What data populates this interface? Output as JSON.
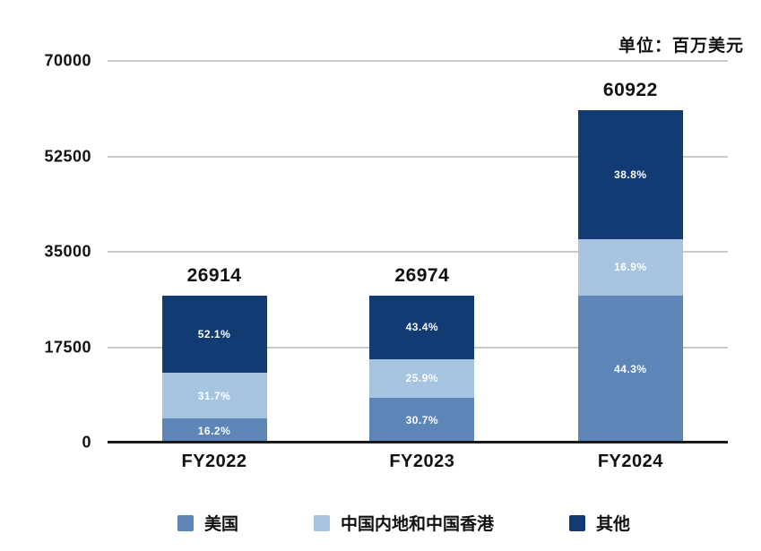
{
  "chart_data": {
    "type": "bar",
    "stacked": true,
    "title": "",
    "unit_label": "单位：百万美元",
    "categories": [
      "FY2022",
      "FY2023",
      "FY2024"
    ],
    "totals": [
      26914,
      26974,
      60922
    ],
    "total_labels": [
      "26914",
      "26974",
      "60922"
    ],
    "series": [
      {
        "name": "美国",
        "color": "#5d85b8",
        "percentages": [
          16.2,
          30.7,
          44.3
        ],
        "labels": [
          "16.2%",
          "30.7%",
          "44.3%"
        ]
      },
      {
        "name": "中国内地和中国香港",
        "color": "#a6c3e0",
        "percentages": [
          31.7,
          25.9,
          16.9
        ],
        "labels": [
          "31.7%",
          "25.9%",
          "16.9%"
        ]
      },
      {
        "name": "其他",
        "color": "#123a73",
        "percentages": [
          52.1,
          43.4,
          38.8
        ],
        "labels": [
          "52.1%",
          "43.4%",
          "38.8%"
        ]
      }
    ],
    "y_ticks": [
      0,
      17500,
      35000,
      52500,
      70000
    ],
    "y_tick_labels": [
      "0",
      "17500",
      "35000",
      "52500",
      "70000"
    ],
    "ylim": [
      0,
      70000
    ],
    "grid": true,
    "legend_position": "bottom"
  },
  "colors": {
    "background": "#ffffff",
    "gridline": "#c9c9c9",
    "baseline": "#1b1b1b",
    "text": "#111111",
    "segment_label_text": "#ffffff"
  }
}
